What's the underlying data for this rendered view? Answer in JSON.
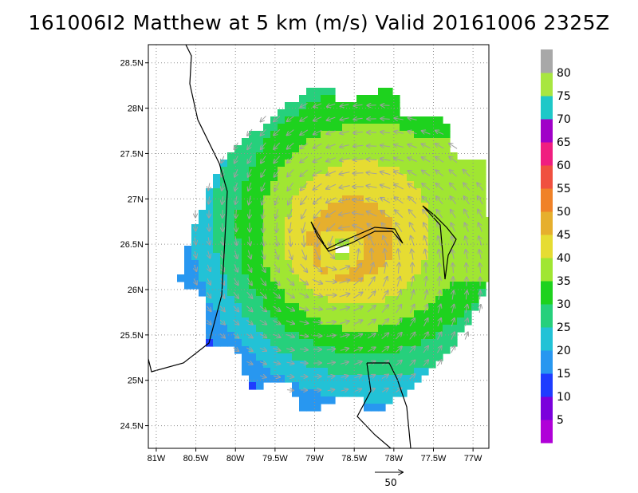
{
  "title": "161006I2 Matthew at 5 km (m/s) Valid 20161006 2325Z",
  "x_tick_labels": [
    "81W",
    "80.5W",
    "80W",
    "79.5W",
    "79W",
    "78.5W",
    "78W",
    "77.5W",
    "77W"
  ],
  "y_tick_labels": [
    "28.5N",
    "28N",
    "27.5N",
    "27N",
    "26.5N",
    "26N",
    "25.5N",
    "25N",
    "24.5N"
  ],
  "x_values": [
    -81,
    -80.5,
    -80,
    -79.5,
    -79,
    -78.5,
    -78,
    -77.5,
    -77
  ],
  "y_values": [
    28.5,
    28,
    27.5,
    27,
    26.5,
    26,
    25.5,
    25,
    24.5
  ],
  "lon_range": [
    -81.1,
    -76.8
  ],
  "lat_range": [
    24.25,
    28.7
  ],
  "storm_center": [
    -78.65,
    26.45
  ],
  "colorbar": {
    "labels": [
      "5",
      "10",
      "15",
      "20",
      "25",
      "30",
      "35",
      "40",
      "45",
      "50",
      "55",
      "60",
      "65",
      "70",
      "75",
      "80"
    ],
    "colors": [
      "#b000d8",
      "#7b00dc",
      "#1e3cff",
      "#2897f0",
      "#22c2d6",
      "#26d07c",
      "#1ed21e",
      "#a0e632",
      "#e6dc32",
      "#e6af2d",
      "#f08228",
      "#f05040",
      "#f01e80",
      "#a000c8",
      "#1ec8c8",
      "#a8e640",
      "#a8a8a8"
    ]
  },
  "reference_vector": "50"
}
